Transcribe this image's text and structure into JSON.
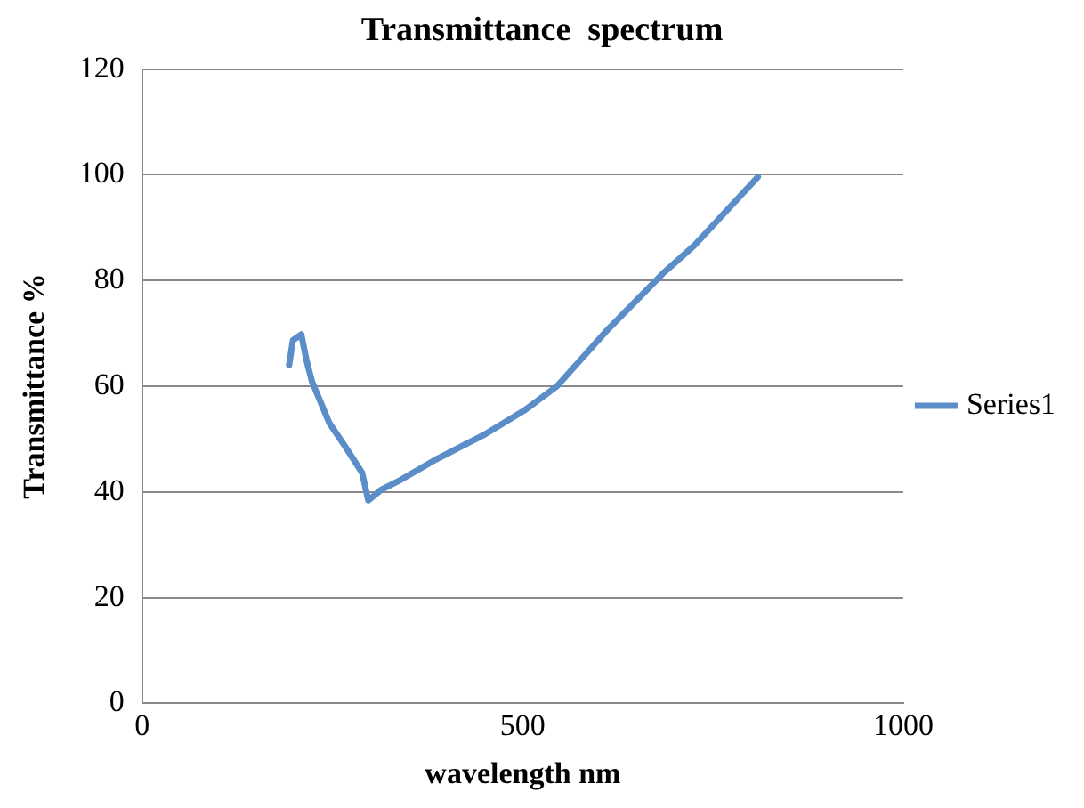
{
  "chart_data": {
    "type": "line",
    "title": "Transmittance  spectrum",
    "xlabel": "wavelength nm",
    "ylabel": "Transmittance %",
    "xlim": [
      0,
      1000
    ],
    "xticks": [
      0,
      500,
      1000
    ],
    "ylim": [
      0,
      120
    ],
    "yticks": [
      0,
      20,
      40,
      60,
      80,
      100,
      120
    ],
    "grid": "y",
    "legend": "right",
    "marker": "none",
    "line_style": "solid",
    "series": [
      {
        "name": "Series1",
        "color": "#5b8ec9",
        "x": [
          193,
          198,
          209,
          216,
          223,
          246,
          268,
          289,
          297,
          315,
          336,
          384,
          448,
          502,
          545,
          609,
          684,
          726,
          809
        ],
        "values": [
          64,
          68.7,
          69.8,
          64.8,
          60.9,
          53,
          48.3,
          43.6,
          38.4,
          40.5,
          42,
          46,
          50.7,
          55.4,
          60,
          70.3,
          81.3,
          86.7,
          99.6
        ]
      }
    ]
  }
}
